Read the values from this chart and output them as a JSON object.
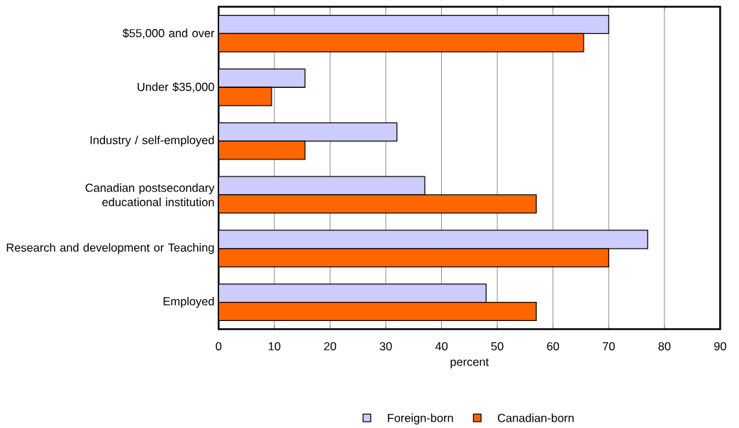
{
  "chart_data": {
    "type": "bar",
    "orientation": "horizontal",
    "xlabel": "percent",
    "categories": [
      "$55,000 and over",
      "Under $35,000",
      "Industry / self-employed",
      "Canadian postsecondary educational institution",
      "Research and development or Teaching",
      "Employed"
    ],
    "series": [
      {
        "name": "Foreign-born",
        "color": "#ccccff",
        "values": [
          70,
          15.5,
          32,
          37,
          77,
          48
        ]
      },
      {
        "name": "Canadian-born",
        "color": "#ff6600",
        "values": [
          65.5,
          9.5,
          15.5,
          57,
          70,
          57
        ]
      }
    ],
    "xlim": [
      0,
      90
    ],
    "xticks": [
      0,
      10,
      20,
      30,
      40,
      50,
      60,
      70,
      80,
      90
    ],
    "grid": "x",
    "legend": "bottom"
  }
}
